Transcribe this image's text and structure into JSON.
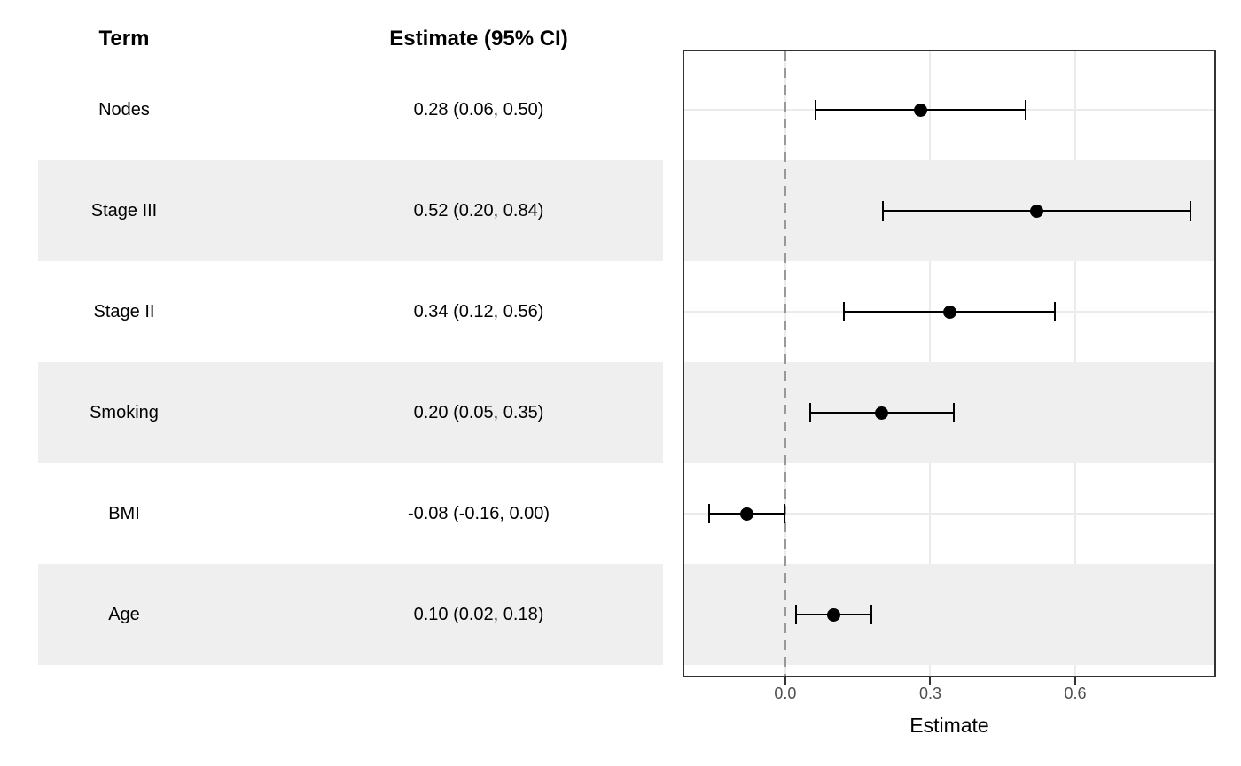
{
  "table": {
    "term_header": "Term",
    "estimate_header": "Estimate (95% CI)"
  },
  "chart_data": {
    "type": "forest",
    "title": "",
    "xlabel": "Estimate",
    "categories": [
      "Nodes",
      "Stage III",
      "Stage II",
      "Smoking",
      "BMI",
      "Age"
    ],
    "estimates": [
      0.28,
      0.52,
      0.34,
      0.2,
      -0.08,
      0.1
    ],
    "ci_lower": [
      0.06,
      0.2,
      0.12,
      0.05,
      -0.16,
      0.02
    ],
    "ci_upper": [
      0.5,
      0.84,
      0.56,
      0.35,
      0.0,
      0.18
    ],
    "ci_labels": [
      "0.28 (0.06, 0.50)",
      "0.52 (0.20, 0.84)",
      "0.34 (0.12, 0.56)",
      "0.20 (0.05, 0.35)",
      "-0.08 (-0.16, 0.00)",
      "0.10 (0.02, 0.18)"
    ],
    "xticks": [
      0.0,
      0.3,
      0.6
    ],
    "xtick_labels": [
      "0.0",
      "0.3",
      "0.6"
    ],
    "xlim": [
      -0.209,
      0.888
    ],
    "reference_line": 0,
    "grid": "major",
    "legend": "none",
    "striped_row_indices": [
      1,
      3,
      5
    ]
  },
  "colors": {
    "stripe": "#efefef",
    "gridline": "#ebebeb",
    "reference_line": "#999999",
    "panel_border": "#333333",
    "point": "#000000",
    "ci": "#000000",
    "tick_label": "#4d4d4d",
    "text": "#000000",
    "background": "#ffffff"
  }
}
